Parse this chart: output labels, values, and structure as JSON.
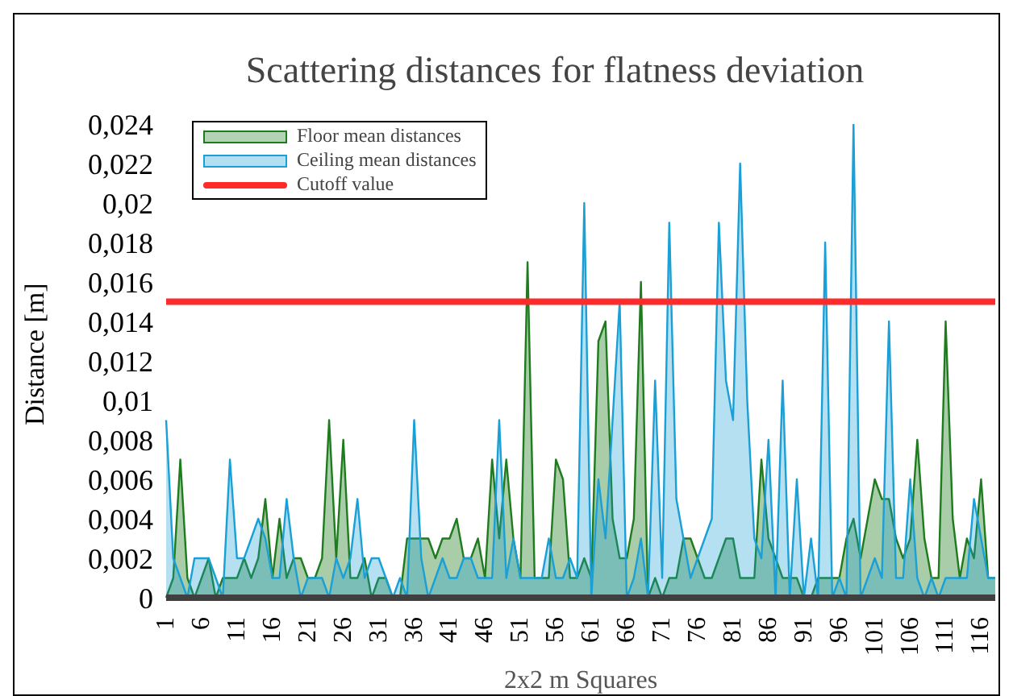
{
  "chart_data": {
    "type": "area",
    "title": "Scattering distances for flatness deviation",
    "xlabel": "2x2 m Squares",
    "ylabel": "Distance  [m]",
    "categories": [
      "1",
      null,
      null,
      null,
      null,
      "6",
      null,
      null,
      null,
      null,
      "11",
      null,
      null,
      null,
      null,
      "16",
      null,
      null,
      null,
      null,
      "21",
      null,
      null,
      null,
      null,
      "26",
      null,
      null,
      null,
      null,
      "31",
      null,
      null,
      null,
      null,
      "36",
      null,
      null,
      null,
      null,
      "41",
      null,
      null,
      null,
      null,
      "46",
      null,
      null,
      null,
      null,
      "51",
      null,
      null,
      null,
      null,
      "56",
      null,
      null,
      null,
      null,
      "61",
      null,
      null,
      null,
      null,
      "66",
      null,
      null,
      null,
      null,
      "71",
      null,
      null,
      null,
      null,
      "76",
      null,
      null,
      null,
      null,
      "81",
      null,
      null,
      null,
      null,
      "86",
      null,
      null,
      null,
      null,
      "91",
      null,
      null,
      null,
      null,
      "96",
      null,
      null,
      null,
      null,
      "101",
      null,
      null,
      null,
      null,
      "106",
      null,
      null,
      null,
      null,
      "111",
      null,
      null,
      null,
      null,
      "116",
      null,
      null
    ],
    "series": [
      {
        "name": "Floor mean distances",
        "color": "#1e7b1e",
        "values": [
          0,
          0.001,
          0.007,
          0.001,
          0,
          0.001,
          0.002,
          0,
          0.001,
          0.001,
          0.001,
          0.002,
          0.001,
          0.002,
          0.005,
          0.001,
          0.004,
          0.001,
          0.002,
          0.002,
          0.001,
          0.001,
          0.002,
          0.009,
          0.002,
          0.008,
          0.001,
          0.001,
          0.002,
          0,
          0.001,
          0.001,
          0,
          0,
          0.003,
          0.003,
          0.003,
          0.003,
          0.002,
          0.003,
          0.003,
          0.004,
          0.002,
          0.002,
          0.003,
          0.001,
          0.007,
          0.003,
          0.007,
          0.003,
          0.001,
          0.017,
          0.001,
          0.001,
          0.001,
          0.007,
          0.006,
          0.001,
          0.001,
          0.002,
          0.001,
          0.013,
          0.014,
          0.004,
          0.002,
          0.002,
          0.004,
          0.016,
          0,
          0.001,
          0,
          0.001,
          0.001,
          0.003,
          0.003,
          0.002,
          0.001,
          0.001,
          0.002,
          0.003,
          0.003,
          0.001,
          0.001,
          0.001,
          0.007,
          0.003,
          0.002,
          0.001,
          0.001,
          0.001,
          0,
          0,
          0.001,
          0.001,
          0.001,
          0.001,
          0.003,
          0.004,
          0.002,
          0.004,
          0.006,
          0.005,
          0.005,
          0.003,
          0.002,
          0.003,
          0.008,
          0.003,
          0.001,
          0.001,
          0.014,
          0.004,
          0.001,
          0.003,
          0.002,
          0.006,
          0.001,
          0.001
        ]
      },
      {
        "name": "Ceiling mean distances",
        "color": "#1a9fd6",
        "values": [
          0.009,
          0.002,
          0.001,
          0,
          0.002,
          0.002,
          0.002,
          0.001,
          0,
          0.007,
          0.002,
          0.002,
          0.003,
          0.004,
          0.003,
          0.001,
          0.001,
          0.005,
          0.002,
          0,
          0.001,
          0.001,
          0.001,
          0,
          0.002,
          0.001,
          0.002,
          0.005,
          0.001,
          0.002,
          0.002,
          0.001,
          0,
          0.001,
          0,
          0.009,
          0.002,
          0,
          0.001,
          0.002,
          0.001,
          0.001,
          0.002,
          0.002,
          0.001,
          0.001,
          0.001,
          0.009,
          0.001,
          0.003,
          0.001,
          0.001,
          0.001,
          0.001,
          0.003,
          0.001,
          0.001,
          0.002,
          0.001,
          0.02,
          0,
          0.006,
          0.003,
          0.009,
          0.015,
          0,
          0.001,
          0.003,
          0,
          0.011,
          0.001,
          0.019,
          0.005,
          0.003,
          0.001,
          0.002,
          0.003,
          0.004,
          0.019,
          0.011,
          0.009,
          0.022,
          0.01,
          0.003,
          0.002,
          0.008,
          0,
          0.011,
          0,
          0.006,
          0,
          0.003,
          0,
          0.018,
          0,
          0.001,
          0,
          0.024,
          0,
          0.001,
          0.002,
          0.001,
          0.014,
          0.001,
          0.001,
          0.006,
          0.001,
          0,
          0.001,
          0,
          0.001,
          0.001,
          0.001,
          0.001,
          0.005,
          0.003,
          0.001,
          0.001
        ]
      }
    ],
    "ylim": [
      0,
      0.024
    ],
    "yticks": [
      0,
      {
        "value": 0.002,
        "label": "0,002"
      },
      {
        "value": 0.004,
        "label": "0,004"
      },
      {
        "value": 0.006,
        "label": "0,006"
      },
      {
        "value": 0.008,
        "label": "0,008"
      },
      {
        "value": 0.01,
        "label": "0,01"
      },
      {
        "value": 0.012,
        "label": "0,012"
      },
      {
        "value": 0.014,
        "label": "0,014"
      },
      {
        "value": 0.016,
        "label": "0,016"
      },
      {
        "value": 0.018,
        "label": "0,018"
      },
      {
        "value": 0.02,
        "label": "0,02"
      },
      {
        "value": 0.022,
        "label": "0,022"
      },
      {
        "value": 0.024,
        "label": "0,024"
      }
    ],
    "ref_lines": [
      {
        "axis": "y",
        "value": 0.015,
        "label": "Cutoff value",
        "color": "#ff2a2a"
      }
    ],
    "grid": false,
    "legend": "top left"
  }
}
